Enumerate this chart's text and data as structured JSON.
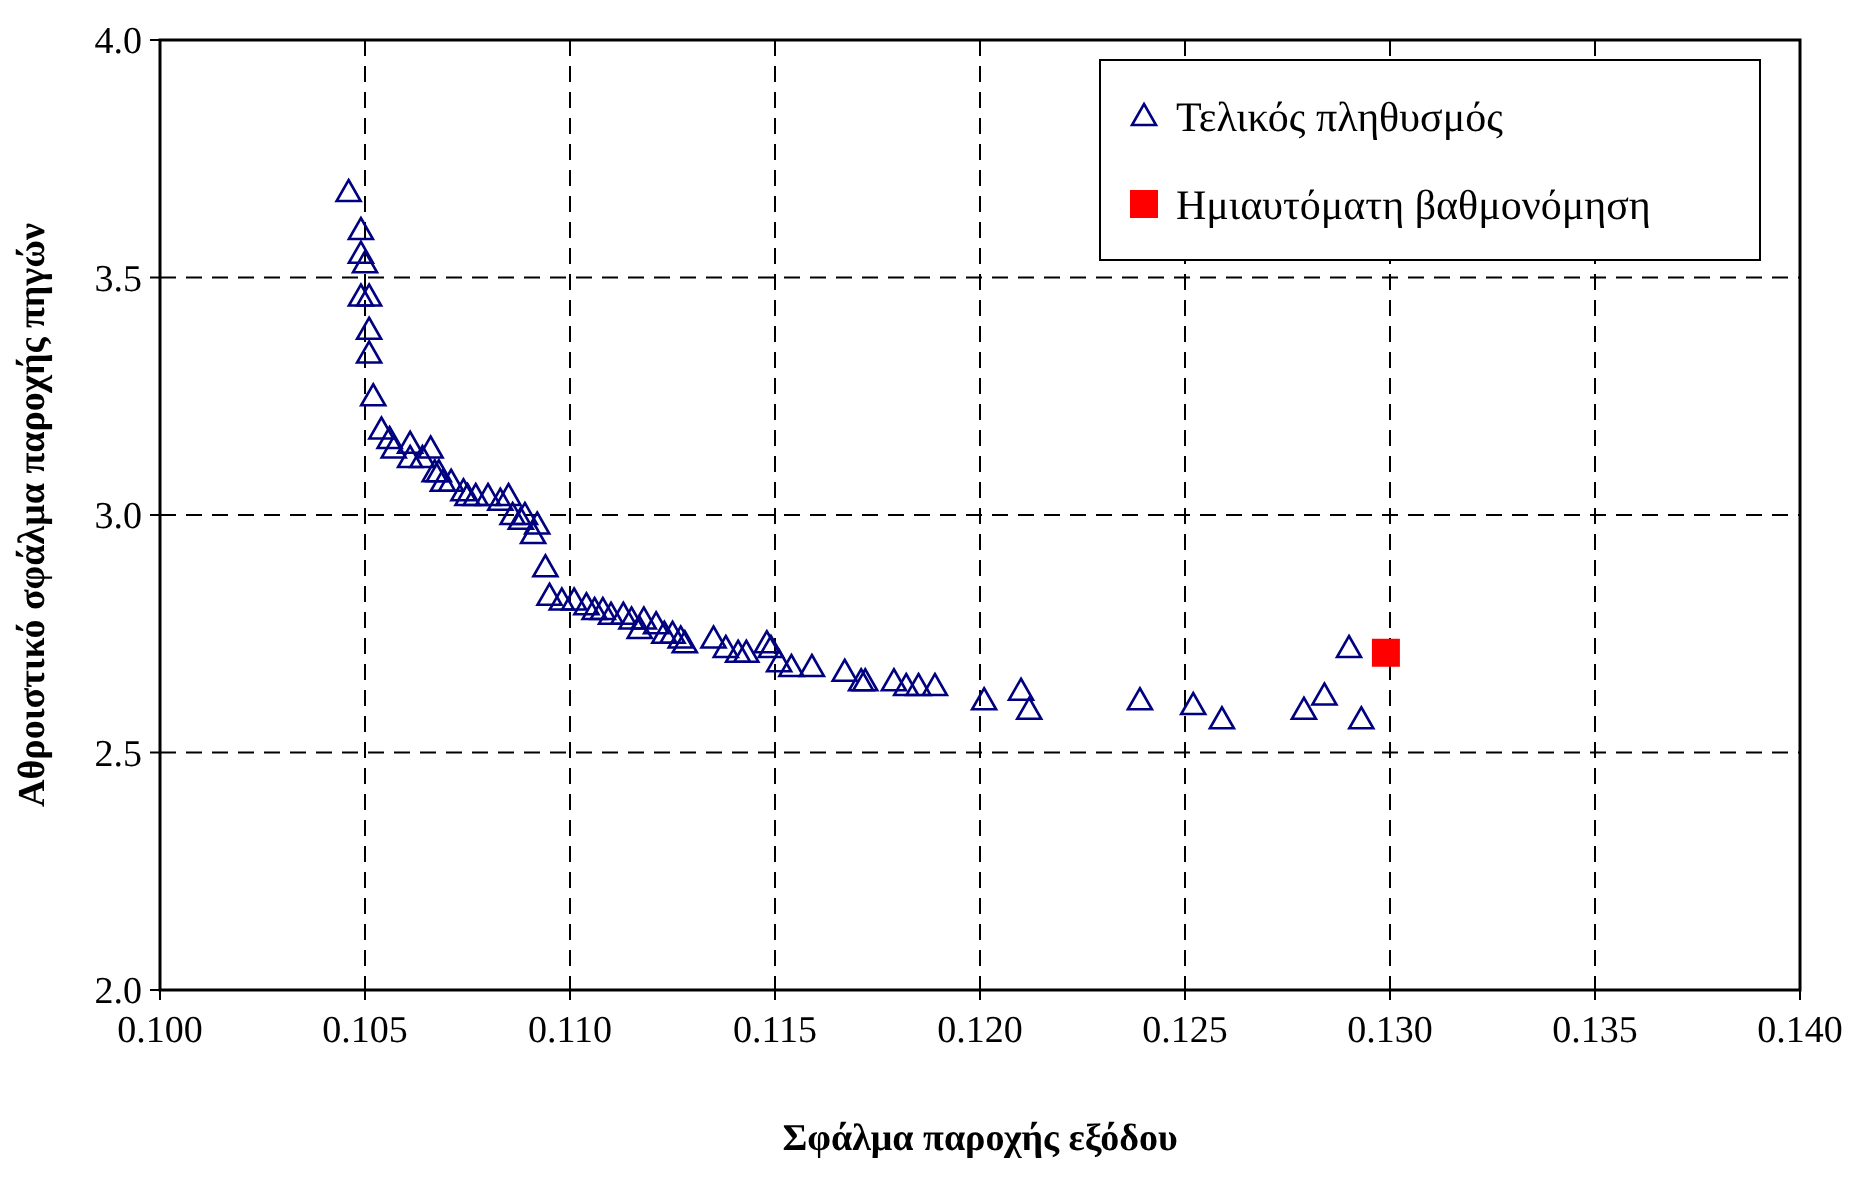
{
  "chart_data": {
    "type": "scatter",
    "xlabel": "Σφάλμα παροχής εξόδου",
    "ylabel": "Αθροιστικό σφάλμα παροχής πηγών",
    "xlim": [
      0.1,
      0.14
    ],
    "xticks": [
      {
        "value": 0.1,
        "label": "0.100"
      },
      {
        "value": 0.105,
        "label": "0.105"
      },
      {
        "value": 0.11,
        "label": "0.110"
      },
      {
        "value": 0.115,
        "label": "0.115"
      },
      {
        "value": 0.12,
        "label": "0.120"
      },
      {
        "value": 0.125,
        "label": "0.125"
      },
      {
        "value": 0.13,
        "label": "0.130"
      },
      {
        "value": 0.135,
        "label": "0.135"
      },
      {
        "value": 0.14,
        "label": "0.140"
      }
    ],
    "ylim": [
      2,
      4
    ],
    "yticks": [
      {
        "value": 2,
        "label": "2.0"
      },
      {
        "value": 2.5,
        "label": "2.5"
      },
      {
        "value": 3,
        "label": "3.0"
      },
      {
        "value": 3.5,
        "label": "3.5"
      },
      {
        "value": 4,
        "label": "4.0"
      }
    ],
    "grid": true,
    "legend": "top right",
    "series": [
      {
        "name": "Τελικός πληθυσμός",
        "color": "#000080",
        "marker": "triangle",
        "x": [
          0.1046,
          0.1049,
          0.1049,
          0.105,
          0.1049,
          0.1051,
          0.1051,
          0.1051,
          0.1052,
          0.1054,
          0.1056,
          0.1057,
          0.1061,
          0.1061,
          0.1064,
          0.1066,
          0.1067,
          0.1068,
          0.1069,
          0.1071,
          0.1074,
          0.1075,
          0.1077,
          0.108,
          0.1083,
          0.1085,
          0.1086,
          0.1088,
          0.1089,
          0.1091,
          0.1092,
          0.1094,
          0.1095,
          0.1098,
          0.1101,
          0.1104,
          0.1106,
          0.1108,
          0.111,
          0.1113,
          0.1115,
          0.1117,
          0.1118,
          0.1121,
          0.1123,
          0.1125,
          0.1127,
          0.1128,
          0.1135,
          0.1138,
          0.1141,
          0.1143,
          0.1148,
          0.1149,
          0.1151,
          0.1154,
          0.1159,
          0.1167,
          0.1171,
          0.1172,
          0.1179,
          0.1182,
          0.1185,
          0.1189,
          0.1201,
          0.121,
          0.1212,
          0.1239,
          0.1252,
          0.1259,
          0.1279,
          0.1284,
          0.129,
          0.1293
        ],
        "values": [
          3.68,
          3.6,
          3.55,
          3.53,
          3.46,
          3.46,
          3.39,
          3.34,
          3.25,
          3.18,
          3.16,
          3.14,
          3.12,
          3.15,
          3.12,
          3.14,
          3.09,
          3.09,
          3.07,
          3.07,
          3.05,
          3.04,
          3.04,
          3.04,
          3.03,
          3.04,
          3.0,
          2.99,
          3.0,
          2.96,
          2.98,
          2.89,
          2.83,
          2.82,
          2.82,
          2.81,
          2.8,
          2.8,
          2.79,
          2.79,
          2.78,
          2.76,
          2.78,
          2.77,
          2.75,
          2.75,
          2.74,
          2.73,
          2.74,
          2.72,
          2.71,
          2.71,
          2.73,
          2.72,
          2.69,
          2.68,
          2.68,
          2.67,
          2.65,
          2.65,
          2.65,
          2.64,
          2.64,
          2.64,
          2.61,
          2.63,
          2.59,
          2.61,
          2.6,
          2.57,
          2.59,
          2.62,
          2.72,
          2.57
        ]
      },
      {
        "name": "Ημιαυτόματη βαθμονόμηση",
        "color": "#ff0000",
        "marker": "square",
        "x": [
          0.1299
        ],
        "values": [
          2.71
        ]
      }
    ]
  }
}
